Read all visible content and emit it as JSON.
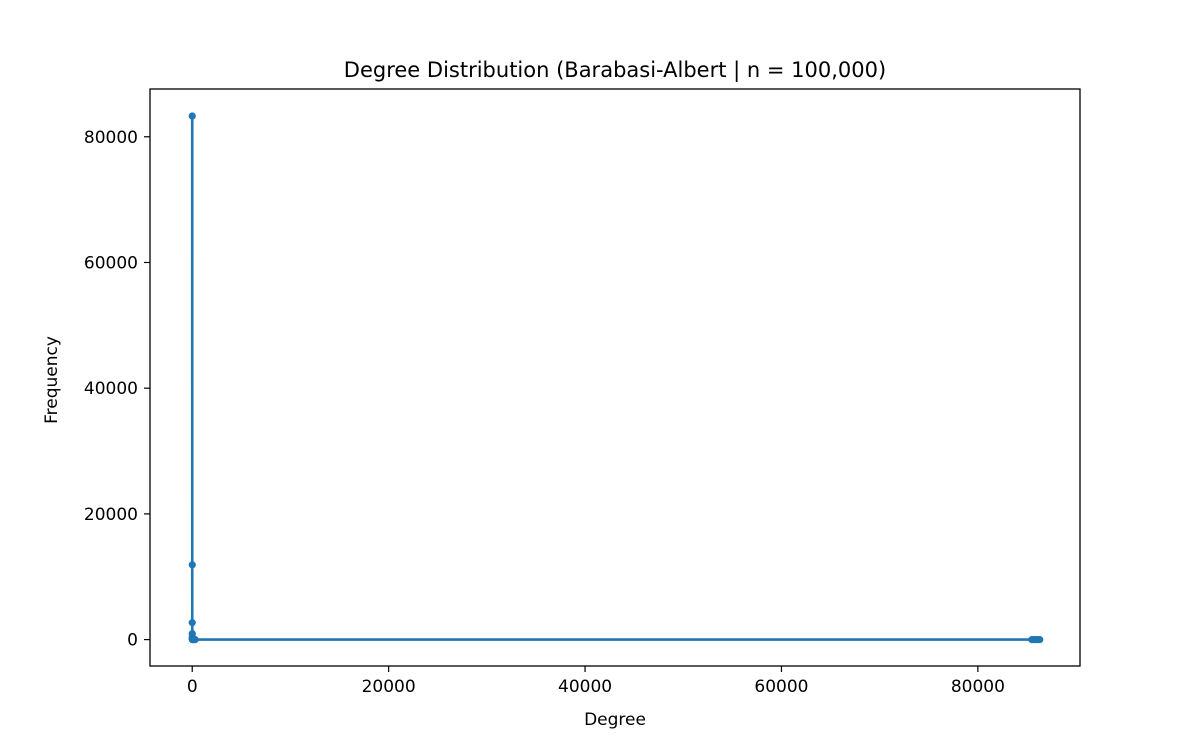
{
  "chart_data": {
    "type": "line",
    "title": "Degree Distribution (Barabasi-Albert | n = 100,000)",
    "xlabel": "Degree",
    "ylabel": "Frequency",
    "xlim": [
      -4300,
      90400
    ],
    "ylim": [
      -4200,
      87600
    ],
    "xticks": [
      0,
      20000,
      40000,
      60000,
      80000
    ],
    "yticks": [
      0,
      20000,
      40000,
      60000,
      80000
    ],
    "grid": false,
    "legend": "none",
    "series": [
      {
        "color": "#1f77b4",
        "marker": "circle",
        "points": [
          {
            "x": 1,
            "y": 83300
          },
          {
            "x": 2,
            "y": 11900
          },
          {
            "x": 3,
            "y": 2700
          },
          {
            "x": 4,
            "y": 950
          },
          {
            "x": 5,
            "y": 450
          },
          {
            "x": 6,
            "y": 250
          },
          {
            "x": 8,
            "y": 120
          },
          {
            "x": 10,
            "y": 70
          },
          {
            "x": 15,
            "y": 30
          },
          {
            "x": 20,
            "y": 15
          },
          {
            "x": 30,
            "y": 8
          },
          {
            "x": 50,
            "y": 4
          },
          {
            "x": 80,
            "y": 2
          },
          {
            "x": 150,
            "y": 1
          },
          {
            "x": 300,
            "y": 1
          },
          {
            "x": 85500,
            "y": 1
          },
          {
            "x": 85700,
            "y": 1
          },
          {
            "x": 85900,
            "y": 1
          },
          {
            "x": 86100,
            "y": 1
          },
          {
            "x": 86300,
            "y": 1
          }
        ]
      }
    ]
  }
}
